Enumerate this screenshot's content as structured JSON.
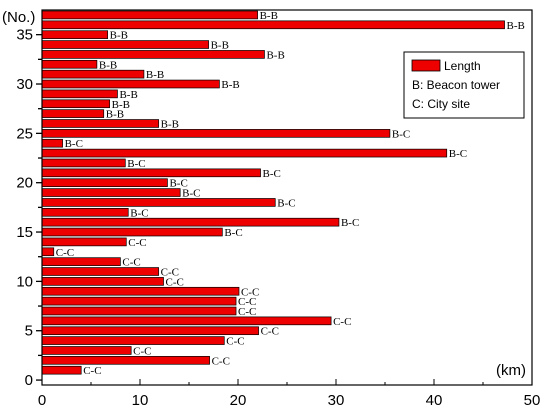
{
  "chart_data": {
    "type": "bar",
    "orientation": "horizontal",
    "xlabel": "(km)",
    "ylabel": "(No.)",
    "xlim": [
      0,
      50
    ],
    "ylim": [
      0,
      37
    ],
    "x_ticks": [
      0,
      10,
      20,
      30,
      40,
      50
    ],
    "y_ticks": [
      0,
      5,
      10,
      15,
      20,
      25,
      30,
      35
    ],
    "grid": false,
    "legend": {
      "placement": "top-right",
      "series_label": "Length",
      "notes": [
        "B: Beacon tower",
        "C: City site"
      ]
    },
    "colors": {
      "bar": "#ee0000",
      "bar_edge": "#000000"
    },
    "categories": [
      1,
      2,
      3,
      4,
      5,
      6,
      7,
      8,
      9,
      10,
      11,
      12,
      13,
      14,
      15,
      16,
      17,
      18,
      19,
      20,
      21,
      22,
      23,
      24,
      25,
      26,
      27,
      28,
      29,
      30,
      31,
      32,
      33,
      34,
      35,
      36,
      37
    ],
    "values": [
      4.0,
      17.1,
      9.1,
      18.6,
      22.1,
      29.5,
      19.8,
      19.8,
      20.1,
      12.4,
      11.9,
      8.0,
      1.2,
      8.6,
      18.4,
      30.3,
      8.8,
      23.8,
      14.1,
      12.8,
      22.3,
      8.5,
      41.3,
      2.1,
      35.5,
      11.9,
      6.3,
      6.9,
      7.7,
      18.1,
      10.4,
      5.6,
      22.7,
      17.0,
      6.7,
      47.2,
      22.0
    ],
    "labels": [
      "C-C",
      "C-C",
      "C-C",
      "C-C",
      "C-C",
      "C-C",
      "C-C",
      "C-C",
      "C-C",
      "C-C",
      "C-C",
      "C-C",
      "C-C",
      "C-C",
      "B-C",
      "B-C",
      "B-C",
      "B-C",
      "B-C",
      "B-C",
      "B-C",
      "B-C",
      "B-C",
      "B-C",
      "B-C",
      "B-B",
      "B-B",
      "B-B",
      "B-B",
      "B-B",
      "B-B",
      "B-B",
      "B-B",
      "B-B",
      "B-B",
      "B-B",
      "B-B"
    ]
  }
}
